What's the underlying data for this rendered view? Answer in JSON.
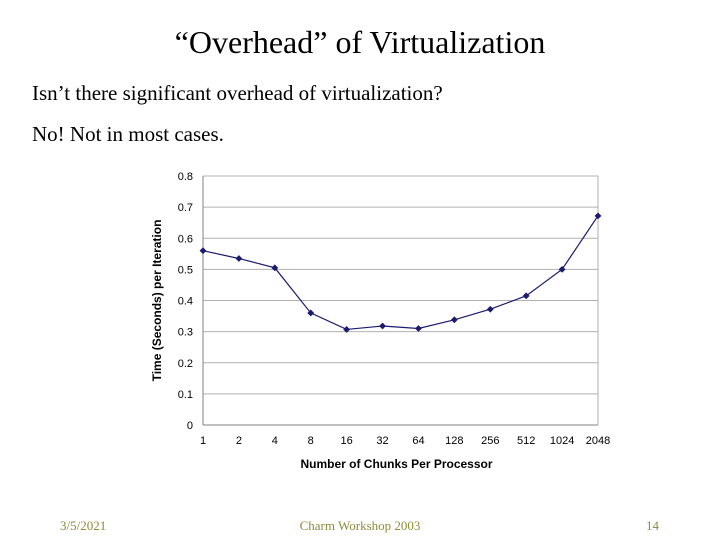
{
  "slide": {
    "title": "“Overhead” of Virtualization",
    "bullets": [
      "Isn’t there significant overhead of virtualization?",
      "No! Not in most cases."
    ]
  },
  "footer": {
    "date": "3/5/2021",
    "center": "Charm Workshop 2003",
    "page": "14"
  },
  "colors": {
    "series": "#1a1a6e",
    "footer_text": "#8c8c3a"
  },
  "chart_data": {
    "type": "line",
    "xlabel": "Number of Chunks Per Processor",
    "ylabel": "Time (Seconds) per Iteration",
    "categories": [
      "1",
      "2",
      "4",
      "8",
      "16",
      "32",
      "64",
      "128",
      "256",
      "512",
      "1024",
      "2048"
    ],
    "y_ticks": [
      "0",
      "0.1",
      "0.2",
      "0.3",
      "0.4",
      "0.5",
      "0.6",
      "0.7",
      "0.8"
    ],
    "ylim": [
      0,
      0.8
    ],
    "grid": "horizontal",
    "legend": "none",
    "series": [
      {
        "values": [
          0.56,
          0.535,
          0.505,
          0.36,
          0.307,
          0.318,
          0.31,
          0.338,
          0.372,
          0.415,
          0.5,
          0.672
        ]
      }
    ]
  }
}
